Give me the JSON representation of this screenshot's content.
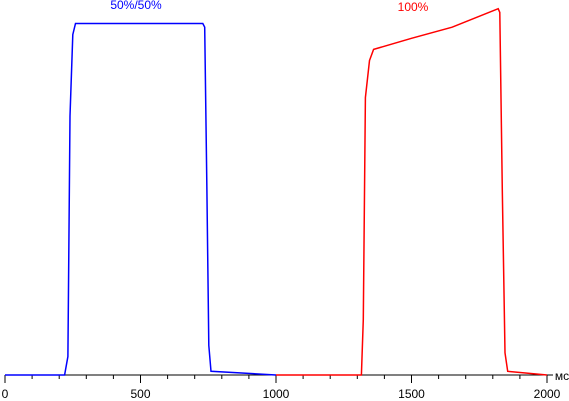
{
  "chart_data": {
    "type": "line",
    "x_unit": "мс",
    "xlim": [
      0,
      2000
    ],
    "xticks": [
      0,
      500,
      1000,
      1500,
      2000
    ],
    "xminorticks": [
      100,
      200,
      300,
      400,
      600,
      700,
      800,
      900,
      1100,
      1200,
      1300,
      1400,
      1600,
      1700,
      1800,
      1900
    ],
    "ylim": [
      0,
      100
    ],
    "series": [
      {
        "name": "50%/50%",
        "color": "#0000ff",
        "x": [
          0,
          220,
          232,
          240,
          250,
          260,
          730,
          737,
          745,
          752,
          760,
          1000
        ],
        "values": [
          0,
          0,
          5,
          70,
          92,
          95,
          95,
          94,
          50,
          8,
          1,
          0
        ]
      },
      {
        "name": "100%",
        "color": "#ff0000",
        "x": [
          1000,
          1315,
          1322,
          1330,
          1345,
          1360,
          1500,
          1650,
          1820,
          1826,
          1835,
          1845,
          1855,
          2000
        ],
        "values": [
          0,
          0,
          15,
          75,
          85,
          88,
          91,
          94,
          99,
          98,
          50,
          6,
          1,
          0
        ]
      }
    ]
  }
}
